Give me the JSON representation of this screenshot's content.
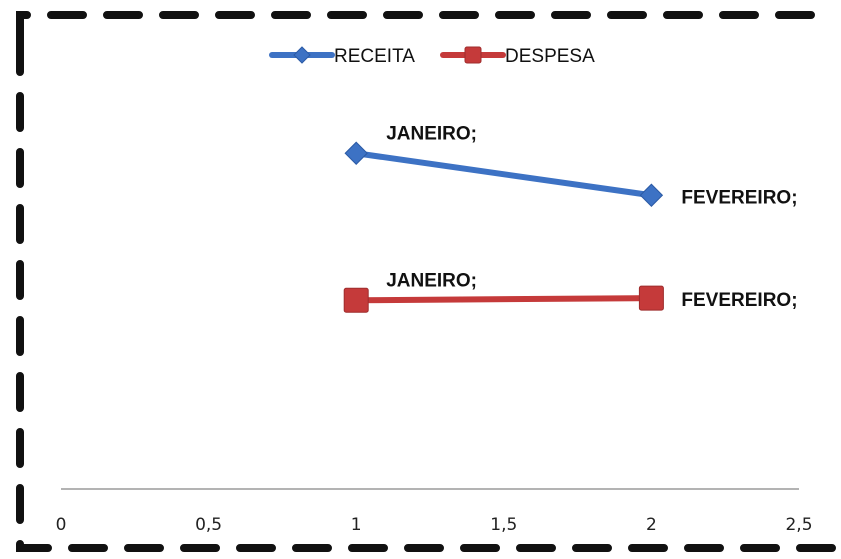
{
  "chart_data": {
    "type": "line",
    "title": "",
    "xlabel": "",
    "ylabel": "",
    "xlim": [
      0,
      2.5
    ],
    "x_ticks": [
      "0",
      "0,5",
      "1",
      "1,5",
      "2",
      "2,5"
    ],
    "y_axis_visible": false,
    "grid": false,
    "legend_position": "top",
    "series": [
      {
        "name": "RECEITA",
        "color": "#3d72c4",
        "marker": "diamond",
        "points": [
          {
            "x": 1,
            "y": 3.35,
            "label": "JANEIRO;"
          },
          {
            "x": 2,
            "y": 2.95,
            "label": "FEVEREIRO;"
          }
        ]
      },
      {
        "name": "DESPESA",
        "color": "#c53a3a",
        "marker": "square",
        "points": [
          {
            "x": 1,
            "y": 1.95,
            "label": "JANEIRO;"
          },
          {
            "x": 2,
            "y": 1.97,
            "label": "FEVEREIRO;"
          }
        ]
      }
    ]
  }
}
